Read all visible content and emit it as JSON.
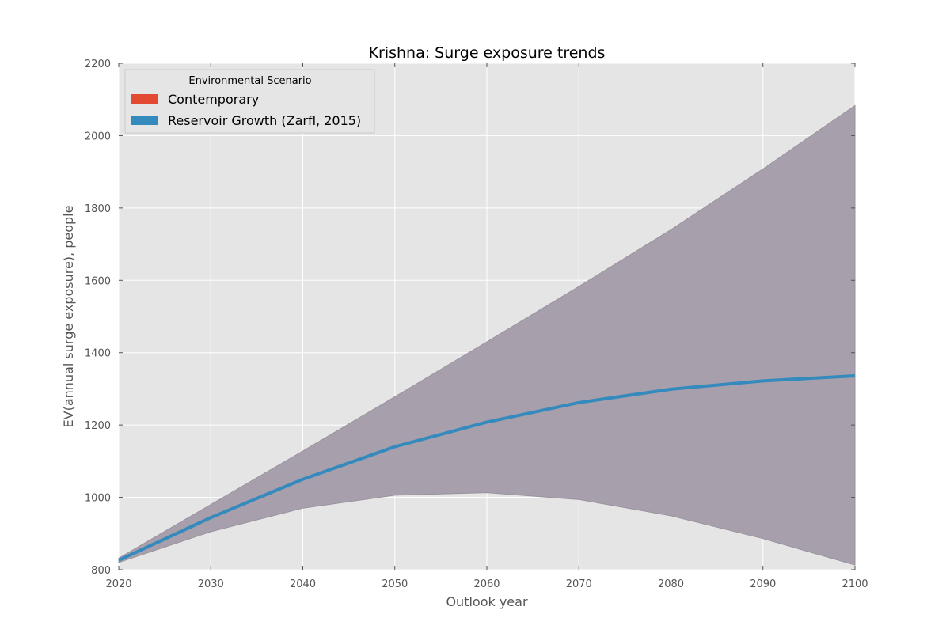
{
  "chart_data": {
    "type": "line",
    "title": "Krishna: Surge exposure trends",
    "xlabel": "Outlook year",
    "ylabel": "EV(annual surge exposure), people",
    "xlim": [
      2020,
      2100
    ],
    "ylim": [
      800,
      2200
    ],
    "xticks": [
      2020,
      2030,
      2040,
      2050,
      2060,
      2070,
      2080,
      2090,
      2100
    ],
    "yticks": [
      800,
      1000,
      1200,
      1400,
      1600,
      1800,
      2000,
      2200
    ],
    "grid": true,
    "legend": {
      "title": "Environmental Scenario",
      "placement": "top-left",
      "entries": [
        {
          "label": "Contemporary",
          "color": "#E24A33"
        },
        {
          "label": "Reservoir Growth (Zarfl, 2015)",
          "color": "#348ABD"
        }
      ]
    },
    "x": [
      2020,
      2030,
      2040,
      2050,
      2060,
      2070,
      2080,
      2090,
      2100
    ],
    "series": [
      {
        "name": "Reservoir Growth (Zarfl, 2015)",
        "color": "#348ABD",
        "values": [
          826,
          944,
          1050,
          1140,
          1208,
          1262,
          1299,
          1322,
          1336
        ]
      }
    ],
    "band": {
      "color": "#A79FAB",
      "upper": [
        832,
        980,
        1128,
        1278,
        1430,
        1583,
        1740,
        1908,
        2083
      ],
      "lower": [
        820,
        905,
        970,
        1006,
        1013,
        994,
        949,
        886,
        813
      ]
    }
  }
}
